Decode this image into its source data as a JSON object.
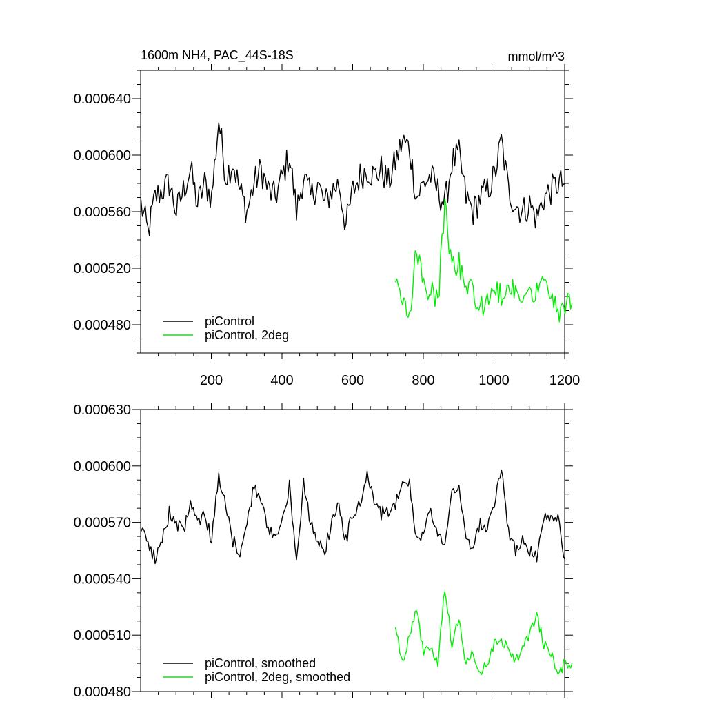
{
  "chart_data": [
    {
      "type": "line",
      "title": "1600m NH4, PAC_44S-18S",
      "units": "mmol/m^3",
      "xlim": [
        0,
        1200
      ],
      "ylim": [
        0.00046,
        0.00066
      ],
      "x_ticks": [
        200,
        400,
        600,
        800,
        1000,
        1200
      ],
      "x_tick_labels": [
        "200",
        "400",
        "600",
        "800",
        "1000",
        "1200"
      ],
      "y_ticks": [
        0.00048,
        0.00052,
        0.00056,
        0.0006,
        0.00064
      ],
      "y_tick_labels": [
        "0.000480",
        "0.000520",
        "0.000560",
        "0.000600",
        "0.000640"
      ],
      "legend_position": "bottom-left",
      "series": [
        {
          "name": "piControl",
          "color": "#000000",
          "x_start": 1,
          "x_step": 20,
          "values": [
            0.000565,
            0.000545,
            0.00057,
            0.000575,
            0.00058,
            0.00056,
            0.000575,
            0.00059,
            0.000565,
            0.00058,
            0.00057,
            0.000625,
            0.000585,
            0.000595,
            0.000575,
            0.00056,
            0.00058,
            0.00059,
            0.000575,
            0.00057,
            0.000585,
            0.0006,
            0.00056,
            0.000585,
            0.00057,
            0.00058,
            0.000565,
            0.000575,
            0.00058,
            0.00055,
            0.000575,
            0.000585,
            0.00059,
            0.000585,
            0.00059,
            0.00058,
            0.000595,
            0.00061,
            0.000605,
            0.00057,
            0.00058,
            0.000585,
            0.000575,
            0.000565,
            0.000595,
            0.0006,
            0.00057,
            0.00056,
            0.00057,
            0.000575,
            0.000585,
            0.00061,
            0.000575,
            0.000565,
            0.00056,
            0.000565,
            0.000555,
            0.00057,
            0.000575,
            0.00058,
            0.00058
          ]
        },
        {
          "name": "piControl, 2deg",
          "color": "#00ee00",
          "x_start": 721,
          "x_step": 20,
          "values": [
            0.00051,
            0.000495,
            0.00049,
            0.000535,
            0.000505,
            0.000505,
            0.000495,
            0.000565,
            0.00052,
            0.000525,
            0.0005,
            0.000505,
            0.00049,
            0.000495,
            0.000505,
            0.0005,
            0.00051,
            0.0005,
            0.0005,
            0.000505,
            0.000505,
            0.000515,
            0.000505,
            0.00049,
            0.000495,
            0.000495
          ]
        }
      ]
    },
    {
      "type": "line",
      "title": "",
      "xlim": [
        0,
        1200
      ],
      "ylim": [
        0.00048,
        0.00063
      ],
      "x_ticks": [
        200,
        400,
        600,
        800,
        1000,
        1200
      ],
      "y_ticks": [
        0.00048,
        0.00051,
        0.00054,
        0.00057,
        0.0006,
        0.00063
      ],
      "y_tick_labels": [
        "0.000480",
        "0.000510",
        "0.000540",
        "0.000570",
        "0.000600",
        "0.000630"
      ],
      "legend_position": "bottom-left",
      "series": [
        {
          "name": "piControl, smoothed",
          "color": "#000000",
          "x_start": 1,
          "x_step": 20,
          "values": [
            0.000565,
            0.00056,
            0.00055,
            0.00056,
            0.000575,
            0.00057,
            0.000565,
            0.00058,
            0.00057,
            0.000575,
            0.00056,
            0.000595,
            0.00058,
            0.00056,
            0.000555,
            0.00057,
            0.00059,
            0.00058,
            0.000565,
            0.000565,
            0.00057,
            0.00059,
            0.00055,
            0.00059,
            0.00057,
            0.00056,
            0.000555,
            0.00057,
            0.00058,
            0.00056,
            0.000575,
            0.00058,
            0.000595,
            0.00058,
            0.000575,
            0.000575,
            0.00058,
            0.000595,
            0.00059,
            0.00056,
            0.000565,
            0.000575,
            0.000565,
            0.000555,
            0.000585,
            0.00059,
            0.00056,
            0.000555,
            0.00057,
            0.000565,
            0.00058,
            0.0006,
            0.000565,
            0.000555,
            0.00056,
            0.000555,
            0.00055,
            0.000575,
            0.00057,
            0.000575,
            0.00055
          ]
        },
        {
          "name": "piControl, 2deg, smoothed",
          "color": "#00ee00",
          "x_start": 721,
          "x_step": 20,
          "values": [
            0.000515,
            0.000495,
            0.00051,
            0.000525,
            0.0005,
            0.000505,
            0.000495,
            0.000535,
            0.000505,
            0.00052,
            0.000495,
            0.0005,
            0.00049,
            0.000495,
            0.000505,
            0.000505,
            0.000505,
            0.000495,
            0.000505,
            0.00051,
            0.00052,
            0.000505,
            0.0005,
            0.00049,
            0.000495,
            0.000495
          ]
        }
      ]
    }
  ]
}
